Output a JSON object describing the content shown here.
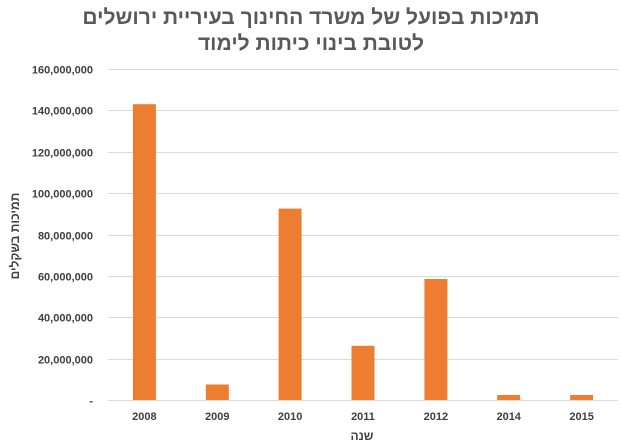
{
  "chart_data": {
    "type": "bar",
    "title_line1": "תמיכות בפועל של משרד החינוך בעיריית ירושלים",
    "title_line2": "לטובת בינוי כיתות לימוד",
    "xlabel": "שנה",
    "ylabel": "תמיכות בשקלים",
    "categories": [
      "2008",
      "2009",
      "2010",
      "2011",
      "2012",
      "2014",
      "2015"
    ],
    "values": [
      143000000,
      7500000,
      92500000,
      26200000,
      58500000,
      2400000,
      2400000
    ],
    "ylim": [
      0,
      160000000
    ],
    "yticks": [
      {
        "value": 0,
        "label": "-"
      },
      {
        "value": 20000000,
        "label": "20,000,000"
      },
      {
        "value": 40000000,
        "label": "40,000,000"
      },
      {
        "value": 60000000,
        "label": "60,000,000"
      },
      {
        "value": 80000000,
        "label": "80,000,000"
      },
      {
        "value": 100000000,
        "label": "100,000,000"
      },
      {
        "value": 120000000,
        "label": "120,000,000"
      },
      {
        "value": 140000000,
        "label": "140,000,000"
      },
      {
        "value": 160000000,
        "label": "160,000,000"
      }
    ],
    "colors": {
      "bar": "#ed7d31",
      "grid": "#d9d9d9",
      "text": "#404040",
      "title": "#595959"
    }
  }
}
